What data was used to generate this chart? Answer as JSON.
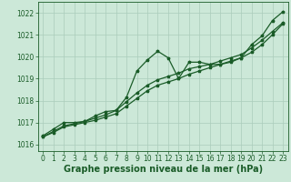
{
  "background_color": "#cce8d8",
  "plot_bg_color": "#cce8d8",
  "grid_color": "#aaccbb",
  "line_color": "#1a5c28",
  "marker_color": "#1a5c28",
  "xlabel": "Graphe pression niveau de la mer (hPa)",
  "ylim": [
    1015.7,
    1022.5
  ],
  "xlim": [
    -0.5,
    23.5
  ],
  "yticks": [
    1016,
    1017,
    1018,
    1019,
    1020,
    1021,
    1022
  ],
  "xticks": [
    0,
    1,
    2,
    3,
    4,
    5,
    6,
    7,
    8,
    9,
    10,
    11,
    12,
    13,
    14,
    15,
    16,
    17,
    18,
    19,
    20,
    21,
    22,
    23
  ],
  "series": [
    {
      "x": [
        0,
        1,
        2,
        3,
        4,
        5,
        6,
        7,
        8,
        9,
        10,
        11,
        12,
        13,
        14,
        15,
        16,
        17,
        18,
        19,
        20,
        21,
        22,
        23
      ],
      "y": [
        1016.4,
        1016.7,
        1017.0,
        1017.0,
        1017.05,
        1017.3,
        1017.5,
        1017.55,
        1018.15,
        1019.35,
        1019.85,
        1020.25,
        1019.95,
        1019.0,
        1019.75,
        1019.75,
        1019.65,
        1019.65,
        1019.75,
        1019.95,
        1020.55,
        1020.95,
        1021.65,
        1022.05
      ]
    },
    {
      "x": [
        0,
        1,
        2,
        3,
        4,
        5,
        6,
        7,
        8,
        9,
        10,
        11,
        12,
        13,
        14,
        15,
        16,
        17,
        18,
        19,
        20,
        21,
        22,
        23
      ],
      "y": [
        1016.35,
        1016.6,
        1016.85,
        1016.95,
        1017.05,
        1017.2,
        1017.35,
        1017.55,
        1017.95,
        1018.35,
        1018.7,
        1018.95,
        1019.1,
        1019.25,
        1019.45,
        1019.55,
        1019.65,
        1019.8,
        1019.95,
        1020.1,
        1020.4,
        1020.75,
        1021.15,
        1021.55
      ]
    },
    {
      "x": [
        0,
        1,
        2,
        3,
        4,
        5,
        6,
        7,
        8,
        9,
        10,
        11,
        12,
        13,
        14,
        15,
        16,
        17,
        18,
        19,
        20,
        21,
        22,
        23
      ],
      "y": [
        1016.35,
        1016.55,
        1016.8,
        1016.9,
        1017.0,
        1017.1,
        1017.25,
        1017.4,
        1017.75,
        1018.1,
        1018.45,
        1018.7,
        1018.85,
        1019.0,
        1019.2,
        1019.35,
        1019.5,
        1019.65,
        1019.8,
        1019.95,
        1020.2,
        1020.55,
        1021.0,
        1021.5
      ]
    }
  ],
  "xlabel_fontsize": 7,
  "tick_fontsize": 5.5,
  "tick_color": "#1a5c28",
  "linewidth": 0.9,
  "markersize": 2.5
}
